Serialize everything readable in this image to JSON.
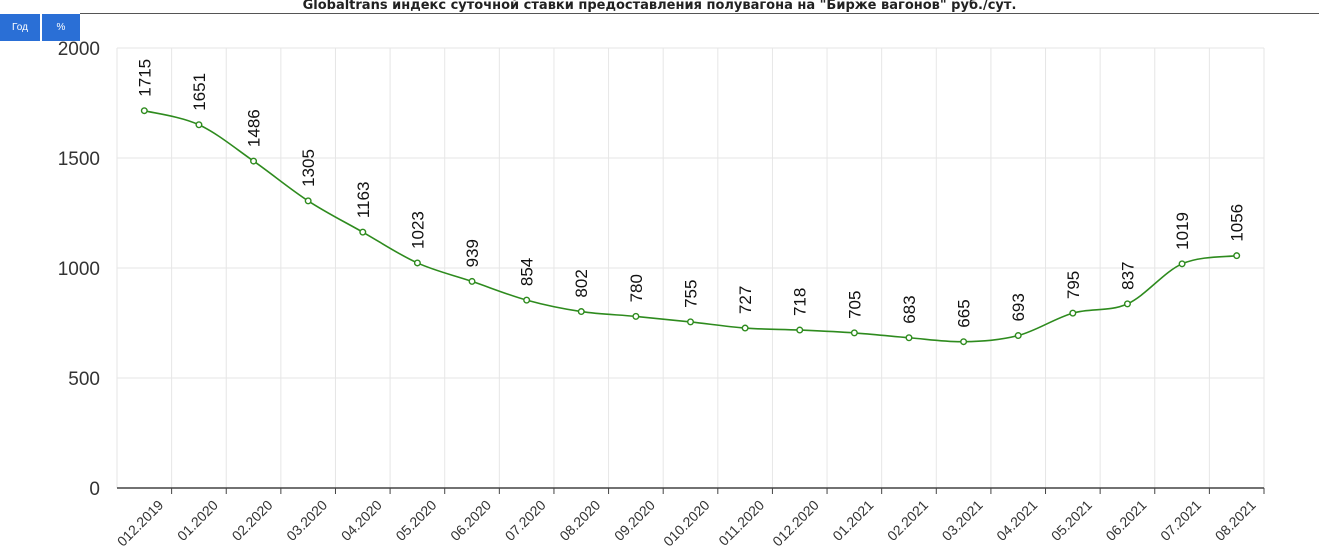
{
  "controls": {
    "year_label": "Год",
    "percent_label": "%"
  },
  "chart_data": {
    "type": "line",
    "title": "Globaltrans индекс суточной ставки предоставления полувагона на \"Бирже вагонов\" руб./сут.",
    "xlabel": "",
    "ylabel": "",
    "categories": [
      "012.2019",
      "01.2020",
      "02.2020",
      "03.2020",
      "04.2020",
      "05.2020",
      "06.2020",
      "07.2020",
      "08.2020",
      "09.2020",
      "010.2020",
      "011.2020",
      "012.2020",
      "01.2021",
      "02.2021",
      "03.2021",
      "04.2021",
      "05.2021",
      "06.2021",
      "07.2021",
      "08.2021"
    ],
    "values": [
      1715,
      1651,
      1486,
      1305,
      1163,
      1023,
      939,
      854,
      802,
      780,
      755,
      727,
      718,
      705,
      683,
      665,
      693,
      795,
      837,
      1019,
      1056
    ],
    "ylim": [
      0,
      2000
    ],
    "yticks": [
      0,
      500,
      1000,
      1500,
      2000
    ],
    "grid": true,
    "line_color": "#2e8b1e"
  }
}
